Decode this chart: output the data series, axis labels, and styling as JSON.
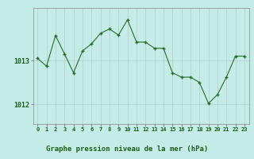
{
  "x": [
    0,
    1,
    2,
    3,
    4,
    5,
    6,
    7,
    8,
    9,
    10,
    11,
    12,
    13,
    14,
    15,
    16,
    17,
    18,
    19,
    20,
    21,
    22,
    23
  ],
  "y": [
    1013.05,
    1012.87,
    1013.57,
    1013.15,
    1012.72,
    1013.22,
    1013.38,
    1013.62,
    1013.72,
    1013.58,
    1013.93,
    1013.42,
    1013.42,
    1013.28,
    1013.28,
    1012.72,
    1012.62,
    1012.62,
    1012.5,
    1012.02,
    1012.22,
    1012.62,
    1013.1,
    1013.1
  ],
  "line_color": "#2d6a2d",
  "marker": "+",
  "marker_color": "#2d6a2d",
  "bg_color": "#c5ebe6",
  "grid_color": "#b0ccca",
  "plot_bg": "#c5ebe6",
  "xlabel": "Graphe pression niveau de la mer (hPa)",
  "xlabel_color": "#1a5c1a",
  "tick_color": "#1a5c1a",
  "bottom_bar_color": "#4a7a4a",
  "ytick_labels": [
    "1012",
    "1013"
  ],
  "ytick_vals": [
    1012,
    1013
  ],
  "ylim": [
    1011.55,
    1014.2
  ],
  "xlim": [
    -0.5,
    23.5
  ],
  "xtick_labels": [
    "0",
    "1",
    "2",
    "3",
    "4",
    "5",
    "6",
    "7",
    "8",
    "9",
    "10",
    "11",
    "12",
    "13",
    "14",
    "15",
    "16",
    "17",
    "18",
    "19",
    "20",
    "21",
    "22",
    "23"
  ]
}
